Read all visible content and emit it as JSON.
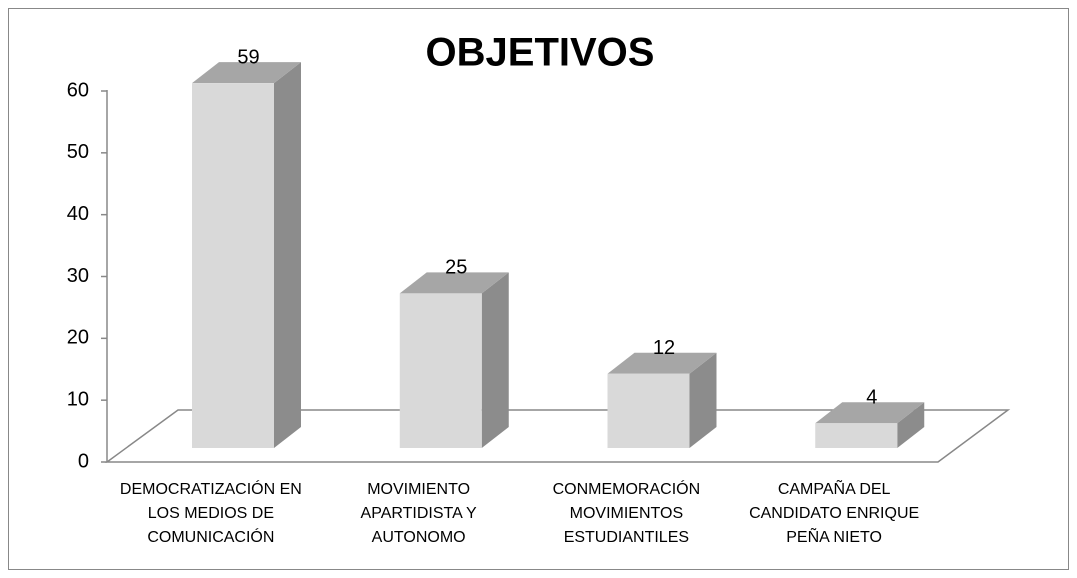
{
  "chart_data": {
    "type": "bar3d",
    "title": "OBJETIVOS",
    "categories": [
      "DEMOCRATIZACIÓN EN LOS MEDIOS DE COMUNICACIÓN",
      "MOVIMIENTO APARTIDISTA Y AUTONOMO",
      "CONMEMORACIÓN MOVIMIENTOS ESTUDIANTILES",
      "CAMPAÑA DEL CANDIDATO ENRIQUE PEÑA NIETO"
    ],
    "values": [
      59,
      25,
      12,
      4
    ],
    "color": "#d9d9d9",
    "ylim": [
      0,
      60
    ],
    "yticks": [
      0,
      10,
      20,
      30,
      40,
      50,
      60
    ]
  }
}
